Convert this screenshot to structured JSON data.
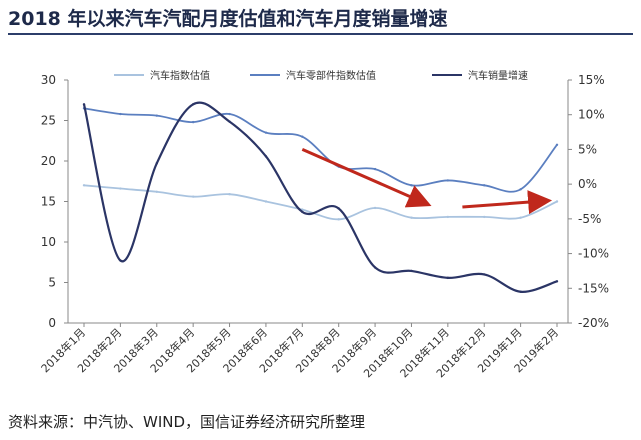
{
  "title": "2018 年以来汽车汽配月度估值和汽车月度销量增速",
  "source": "资料来源：中汽协、WIND，国信证券经济研究所整理",
  "chart_data": {
    "type": "line",
    "x": [
      "2018年1月",
      "2018年2月",
      "2018年3月",
      "2018年4月",
      "2018年5月",
      "2018年6月",
      "2018年7月",
      "2018年8月",
      "2018年9月",
      "2018年10月",
      "2018年11月",
      "2018年12月",
      "2019年1月",
      "2019年2月"
    ],
    "left_axis": {
      "min": 0,
      "max": 30,
      "ticks": [
        "0",
        "5",
        "10",
        "15",
        "20",
        "25",
        "30"
      ]
    },
    "right_axis": {
      "min": -20,
      "max": 15,
      "ticks": [
        "-20%",
        "-15%",
        "-10%",
        "-5%",
        "0%",
        "5%",
        "10%",
        "15%"
      ]
    },
    "series": [
      {
        "name": "汽车指数估值",
        "axis": "left",
        "color": "#a9c3df",
        "values": [
          17.0,
          16.6,
          16.2,
          15.6,
          15.9,
          15.0,
          14.0,
          12.8,
          14.2,
          13.0,
          13.1,
          13.1,
          13.0,
          15.0
        ]
      },
      {
        "name": "汽车零部件指数估值",
        "axis": "left",
        "color": "#5b7fc0",
        "values": [
          26.5,
          25.8,
          25.6,
          24.8,
          25.8,
          23.5,
          23.0,
          19.3,
          19.0,
          17.0,
          17.6,
          17.0,
          16.5,
          22.0
        ]
      },
      {
        "name": "汽车销量增速",
        "axis": "right",
        "color": "#2b3566",
        "values": [
          11.5,
          -11.0,
          3.0,
          11.5,
          9.0,
          4.0,
          -4.0,
          -3.5,
          -12.0,
          -12.5,
          -13.5,
          -13.0,
          -15.5,
          -14.0
        ]
      }
    ],
    "arrows": [
      {
        "color": "#c0281c",
        "from": [
          6,
          5.0
        ],
        "to": [
          9.4,
          -2.8
        ],
        "axis": "right"
      },
      {
        "color": "#c0281c",
        "from": [
          10.4,
          -3.3
        ],
        "to": [
          12.7,
          -2.4
        ],
        "axis": "right"
      }
    ],
    "legend_placement": "top",
    "grid": false
  }
}
